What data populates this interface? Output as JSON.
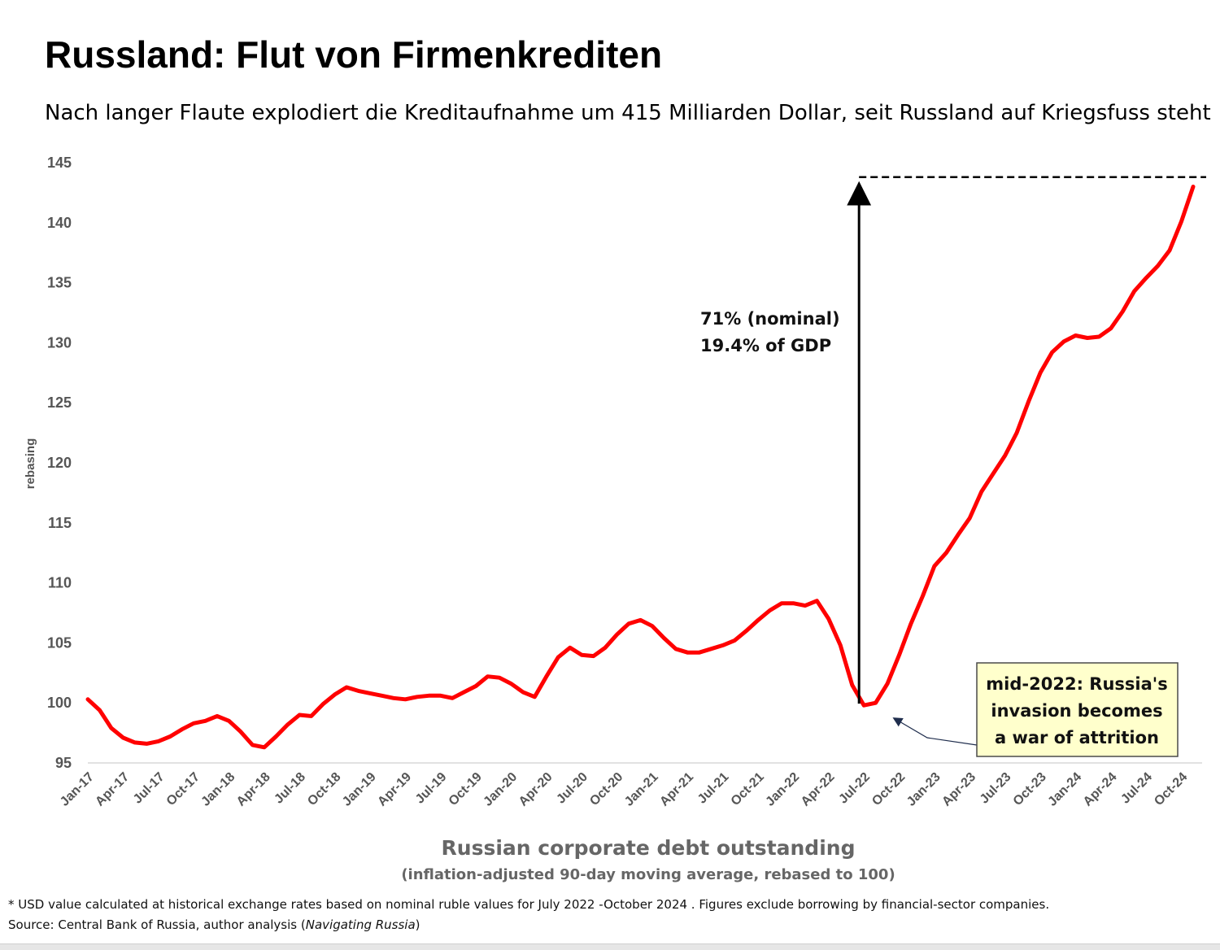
{
  "title": "Russland: Flut von Firmenkrediten",
  "subtitle": "Nach langer Flaute explodiert die Kreditaufnahme um 415 Milliarden Dollar, seit Russland auf Kriegsfuss steht",
  "chart_data": {
    "type": "line",
    "ylabel": "rebasing",
    "xlabel": "Russian corporate debt outstanding",
    "xlabel_sub": "(inflation-adjusted 90-day moving average, rebased to 100)",
    "ylim": [
      95,
      145
    ],
    "yticks": [
      95,
      100,
      105,
      110,
      115,
      120,
      125,
      130,
      135,
      140,
      145
    ],
    "xtick_labels": [
      "Jan-17",
      "Apr-17",
      "Jul-17",
      "Oct-17",
      "Jan-18",
      "Apr-18",
      "Jul-18",
      "Oct-18",
      "Jan-19",
      "Apr-19",
      "Jul-19",
      "Oct-19",
      "Jan-20",
      "Apr-20",
      "Jul-20",
      "Oct-20",
      "Jan-21",
      "Apr-21",
      "Jul-21",
      "Oct-21",
      "Jan-22",
      "Apr-22",
      "Jul-22",
      "Oct-22",
      "Jan-23",
      "Apr-23",
      "Jul-23",
      "Oct-23",
      "Jan-24",
      "Apr-24",
      "Jul-24",
      "Oct-24"
    ],
    "line_color": "#ff0000",
    "series": [
      {
        "values": [
          100.3,
          99.4,
          97.9,
          97.1,
          96.7,
          96.6,
          96.8,
          97.2,
          97.8,
          98.3,
          98.5,
          98.9,
          98.5,
          97.6,
          96.5,
          96.3,
          97.2,
          98.2,
          99.0,
          98.9,
          99.9,
          100.7,
          101.3,
          101.0,
          100.8,
          100.6,
          100.4,
          100.3,
          100.5,
          100.6,
          100.6,
          100.4,
          100.9,
          101.4,
          102.2,
          102.1,
          101.6,
          100.9,
          100.5,
          102.2,
          103.8,
          104.6,
          104.0,
          103.9,
          104.6,
          105.7,
          106.6,
          106.9,
          106.4,
          105.4,
          104.5,
          104.2,
          104.2,
          104.5,
          104.8,
          105.2,
          106.0,
          106.9,
          107.7,
          108.3,
          108.3,
          108.1,
          108.5,
          107.0,
          104.8,
          101.5,
          99.8,
          100.0,
          101.6,
          104.0,
          106.6,
          108.9,
          111.4,
          112.5,
          114.0,
          115.4,
          117.6,
          119.1,
          120.6,
          122.5,
          125.1,
          127.5,
          129.2,
          130.1,
          130.6,
          130.4,
          130.5,
          131.2,
          132.6,
          134.3,
          135.4,
          136.4,
          137.7,
          140.1,
          143.0
        ]
      }
    ],
    "annotations": {
      "arrow_label_1": "71% (nominal)",
      "arrow_label_2": "19.4% of GDP",
      "peak_reference": 143.8,
      "box_lines": [
        "mid-2022: Russia's",
        "invasion becomes",
        "a war of attrition"
      ]
    }
  },
  "footnote": "* USD value calculated at historical exchange rates based on nominal ruble values for July 2022 -October 2024 .  Figures exclude  borrowing by financial-sector companies.",
  "source_prefix": "Source: Central Bank of Russia, author analysis (",
  "source_italic": "Navigating Russia",
  "source_suffix": ")"
}
